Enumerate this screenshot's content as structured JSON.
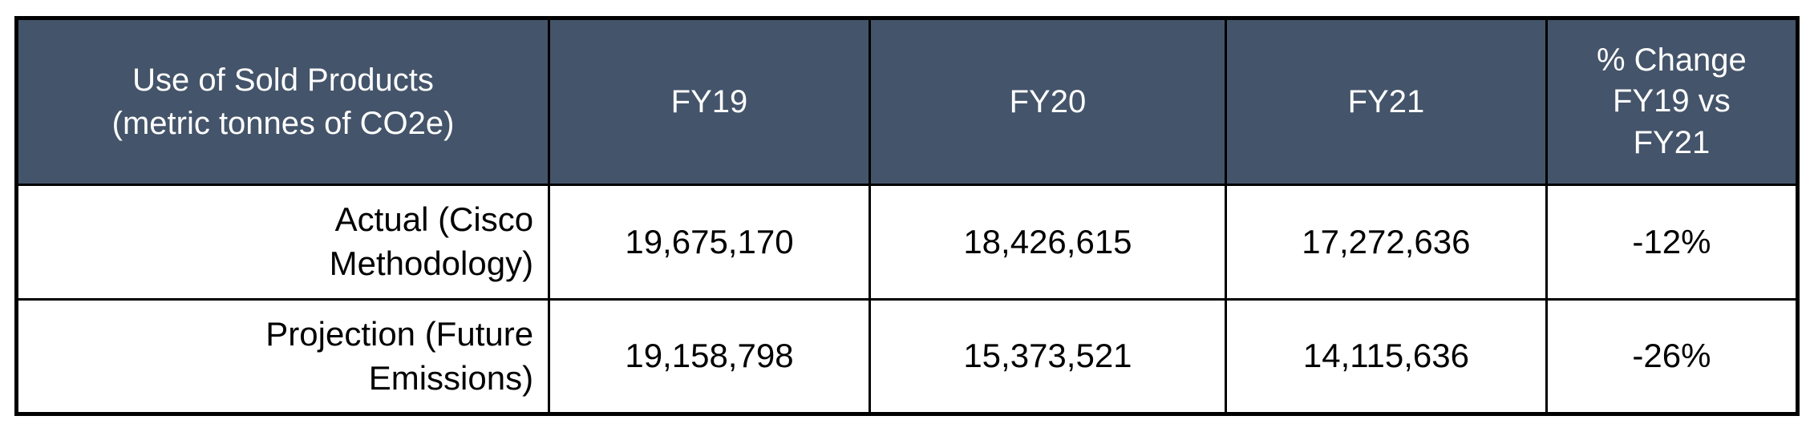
{
  "table": {
    "header": {
      "col0": "Use of Sold Products\n(metric tonnes of CO2e)",
      "col1": "FY19",
      "col2": "FY20",
      "col3": "FY21",
      "col4": "% Change\nFY19 vs\nFY21"
    },
    "rows": [
      {
        "label": "Actual (Cisco\nMethodology)",
        "fy19": "19,675,170",
        "fy20": "18,426,615",
        "fy21": "17,272,636",
        "change": "-12%"
      },
      {
        "label": "Projection (Future\nEmissions)",
        "fy19": "19,158,798",
        "fy20": "15,373,521",
        "fy21": "14,115,636",
        "change": "-26%"
      }
    ],
    "colors": {
      "header_bg": "#44546A",
      "header_text": "#FFFFFF",
      "body_text": "#000000",
      "border": "#000000"
    }
  },
  "chart_data": {
    "type": "table",
    "title": "Use of Sold Products (metric tonnes of CO2e)",
    "columns": [
      "Use of Sold Products (metric tonnes of CO2e)",
      "FY19",
      "FY20",
      "FY21",
      "% Change FY19 vs FY21"
    ],
    "rows": [
      [
        "Actual (Cisco Methodology)",
        19675170,
        18426615,
        17272636,
        "-12%"
      ],
      [
        "Projection (Future Emissions)",
        19158798,
        15373521,
        14115636,
        "-26%"
      ]
    ]
  }
}
